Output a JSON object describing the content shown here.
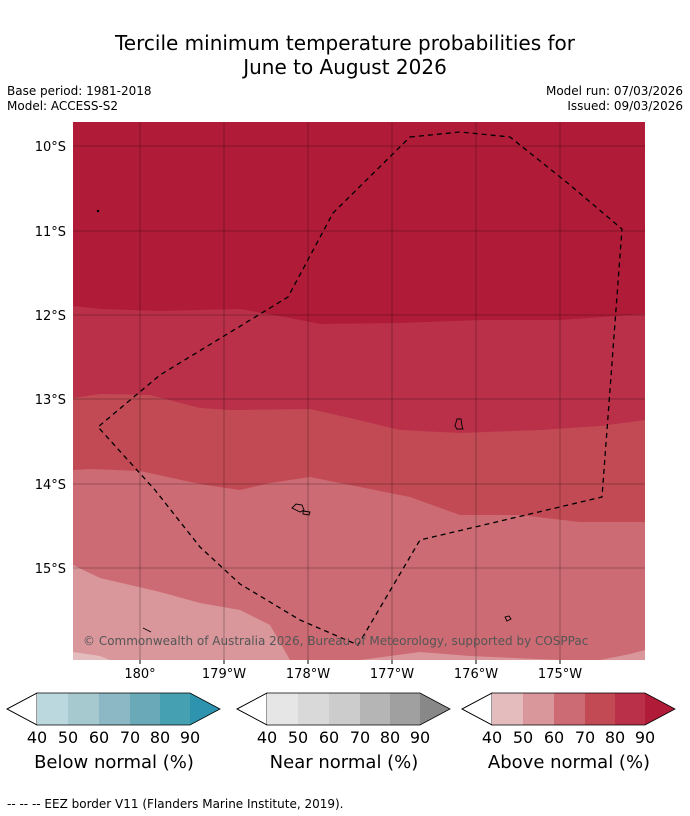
{
  "header": {
    "title_line1": "Tercile minimum temperature probabilities for",
    "title_line2": "June to August 2026",
    "base_period": "Base period: 1981-2018",
    "model": "Model: ACCESS-S2",
    "model_run": "Model run: 07/03/2026",
    "issued": "Issued: 09/03/2026"
  },
  "map": {
    "lat_labels": [
      "10°S",
      "11°S",
      "12°S",
      "13°S",
      "14°S",
      "15°S"
    ],
    "lon_labels": [
      "180°",
      "179°W",
      "178°W",
      "177°W",
      "176°W",
      "175°W"
    ],
    "copyright": "© Commonwealth of Australia 2026, Bureau of Meteorology, supported by COSPPac",
    "probability_bands": [
      {
        "category": "Above normal",
        "range": "80-90%",
        "color": "#b01c38"
      },
      {
        "category": "Above normal",
        "range": "70-80%",
        "color": "#ba3049"
      },
      {
        "category": "Above normal",
        "range": "60-70%",
        "color": "#c24a55"
      },
      {
        "category": "Above normal",
        "range": "50-60%",
        "color": "#cc6b73"
      },
      {
        "category": "Above normal",
        "range": "40-50%",
        "color": "#d9979c"
      },
      {
        "category": "Above normal",
        "range": "<40%",
        "color": "#e5bcbe"
      }
    ]
  },
  "legends": [
    {
      "title": "Below normal (%)",
      "ticks": [
        "40",
        "50",
        "60",
        "70",
        "80",
        "90"
      ],
      "colors": [
        "#ffffff",
        "#bcd8df",
        "#a6c8cf",
        "#8bb8c4",
        "#6aa9b8",
        "#45a0b1",
        "#2e93ae"
      ]
    },
    {
      "title": "Near normal (%)",
      "ticks": [
        "40",
        "50",
        "60",
        "70",
        "80",
        "90"
      ],
      "colors": [
        "#ffffff",
        "#e6e6e6",
        "#d9d9d9",
        "#cccccc",
        "#b5b5b5",
        "#a0a0a0",
        "#888888"
      ]
    },
    {
      "title": "Above normal (%)",
      "ticks": [
        "40",
        "50",
        "60",
        "70",
        "80",
        "90"
      ],
      "colors": [
        "#ffffff",
        "#e5bcbe",
        "#d9979c",
        "#cc6b73",
        "#c24a55",
        "#ba3049",
        "#b01c38"
      ]
    }
  ],
  "footer": {
    "eez_note": "--  --  -- EEZ border V11 (Flanders Marine Institute, 2019)."
  }
}
